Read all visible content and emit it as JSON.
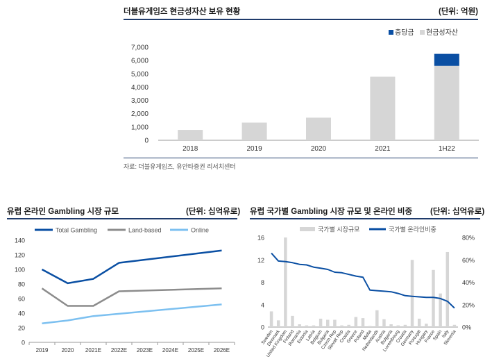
{
  "top": {
    "title": "더블유게임즈 현금성자산 보유 현황",
    "unit": "(단위: 억원)",
    "source": "자료: 더블유게임즈, 유안타증권 리서치센터",
    "chart_data": {
      "type": "bar",
      "stacked": true,
      "categories": [
        "2018",
        "2019",
        "2020",
        "2021",
        "1H22"
      ],
      "series": [
        {
          "name": "충당금",
          "color": "#0a4fa3",
          "values": [
            0,
            0,
            0,
            0,
            900
          ]
        },
        {
          "name": "현금성자산",
          "color": "#d6d6d6",
          "values": [
            780,
            1330,
            1700,
            4780,
            5600
          ]
        }
      ],
      "ylim": [
        0,
        7000
      ],
      "yticks": [
        "0",
        "1,000",
        "2,000",
        "3,000",
        "4,000",
        "5,000",
        "6,000",
        "7,000"
      ],
      "legend": "top-right"
    }
  },
  "left": {
    "title": "유럽 온라인 Gambling 시장 규모",
    "unit": "(단위: 십억유로)",
    "chart_data": {
      "type": "line",
      "categories": [
        "2019",
        "2020",
        "2021E",
        "2022E",
        "2023E",
        "2024E",
        "2025E",
        "2026E"
      ],
      "series": [
        {
          "name": "Total Gambling",
          "color": "#0a4fa3",
          "values": [
            100,
            81,
            87,
            109,
            null,
            null,
            null,
            126
          ]
        },
        {
          "name": "Land-based",
          "color": "#8c8c8c",
          "values": [
            74,
            50,
            50,
            70,
            null,
            null,
            null,
            74
          ]
        },
        {
          "name": "Online",
          "color": "#7cc0f0",
          "values": [
            26,
            30,
            36,
            null,
            null,
            null,
            null,
            52
          ]
        }
      ],
      "ylim": [
        0,
        140
      ],
      "yticks": [
        "0",
        "20",
        "40",
        "60",
        "80",
        "100",
        "120",
        "140"
      ],
      "legend": "top"
    }
  },
  "right": {
    "title": "유럽 국가별 Gambling 시장 규모 및 온라인 비중",
    "unit": "(단위: 십억유로)",
    "chart_data": {
      "type": "bar",
      "combo": "bar+line",
      "categories": [
        "Sweden",
        "Denmark",
        "United Kingdom",
        "Finland",
        "Romania",
        "Estonia",
        "Latvia",
        "Belgium",
        "Bulgaria",
        "Czech Rep",
        "Slovak Rep",
        "Croatia",
        "Greece",
        "Poland",
        "Malta",
        "Netherlands",
        "Austria",
        "Bulgaria",
        "Luxembourg",
        "Croatia",
        "Germany",
        "Portugal",
        "Hungary",
        "France",
        "Spain",
        "Italy",
        "Slovenia"
      ],
      "series": [
        {
          "name": "국가별 시장규모",
          "color": "#d6d6d6",
          "axis": "left",
          "values": [
            2.8,
            1.2,
            16.0,
            2.0,
            0.5,
            0.3,
            0.3,
            1.5,
            1.3,
            1.3,
            0.3,
            0.4,
            1.8,
            1.6,
            0.2,
            3.0,
            1.4,
            0.5,
            0.3,
            0.4,
            12.0,
            1.5,
            0.6,
            10.2,
            6.0,
            13.4,
            0.4
          ]
        },
        {
          "name": "국가별 온라인비중",
          "color": "#0a4fa3",
          "axis": "right",
          "values": [
            66,
            59,
            58.5,
            57.5,
            56,
            55.5,
            53.5,
            52.5,
            51.5,
            49,
            48.5,
            47,
            45.5,
            44.5,
            33,
            32.5,
            32,
            31.5,
            30,
            28,
            27.5,
            27,
            26.5,
            26.5,
            25.5,
            23,
            17
          ]
        }
      ],
      "ylim": [
        0,
        16
      ],
      "yticks": [
        "0",
        "4",
        "8",
        "12",
        "16"
      ],
      "y2lim": [
        0,
        80
      ],
      "y2ticks": [
        "0%",
        "20%",
        "40%",
        "60%",
        "80%"
      ],
      "legend": "top"
    }
  }
}
